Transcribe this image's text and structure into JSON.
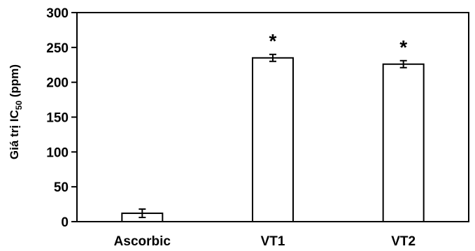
{
  "chart_data": {
    "type": "bar",
    "categories": [
      "Ascorbic",
      "VT1",
      "VT2"
    ],
    "values": [
      12,
      235,
      226
    ],
    "errors": [
      6,
      5,
      5
    ],
    "significance": [
      "",
      "*",
      "*"
    ],
    "ylabel": "Giá trị IC50 (ppm)",
    "ylabel_parts": {
      "prefix": "Giá trị IC",
      "subscript": "50",
      "suffix": " (ppm)"
    },
    "ylim": [
      0,
      300
    ],
    "yticks": [
      "0",
      "50",
      "100",
      "150",
      "200",
      "250",
      "300"
    ],
    "xlabel": "",
    "title": "",
    "grid": false,
    "legend": "none",
    "colors": {
      "bar_fill": "#ffffff",
      "bar_stroke": "#000000",
      "axis": "#000000"
    }
  }
}
